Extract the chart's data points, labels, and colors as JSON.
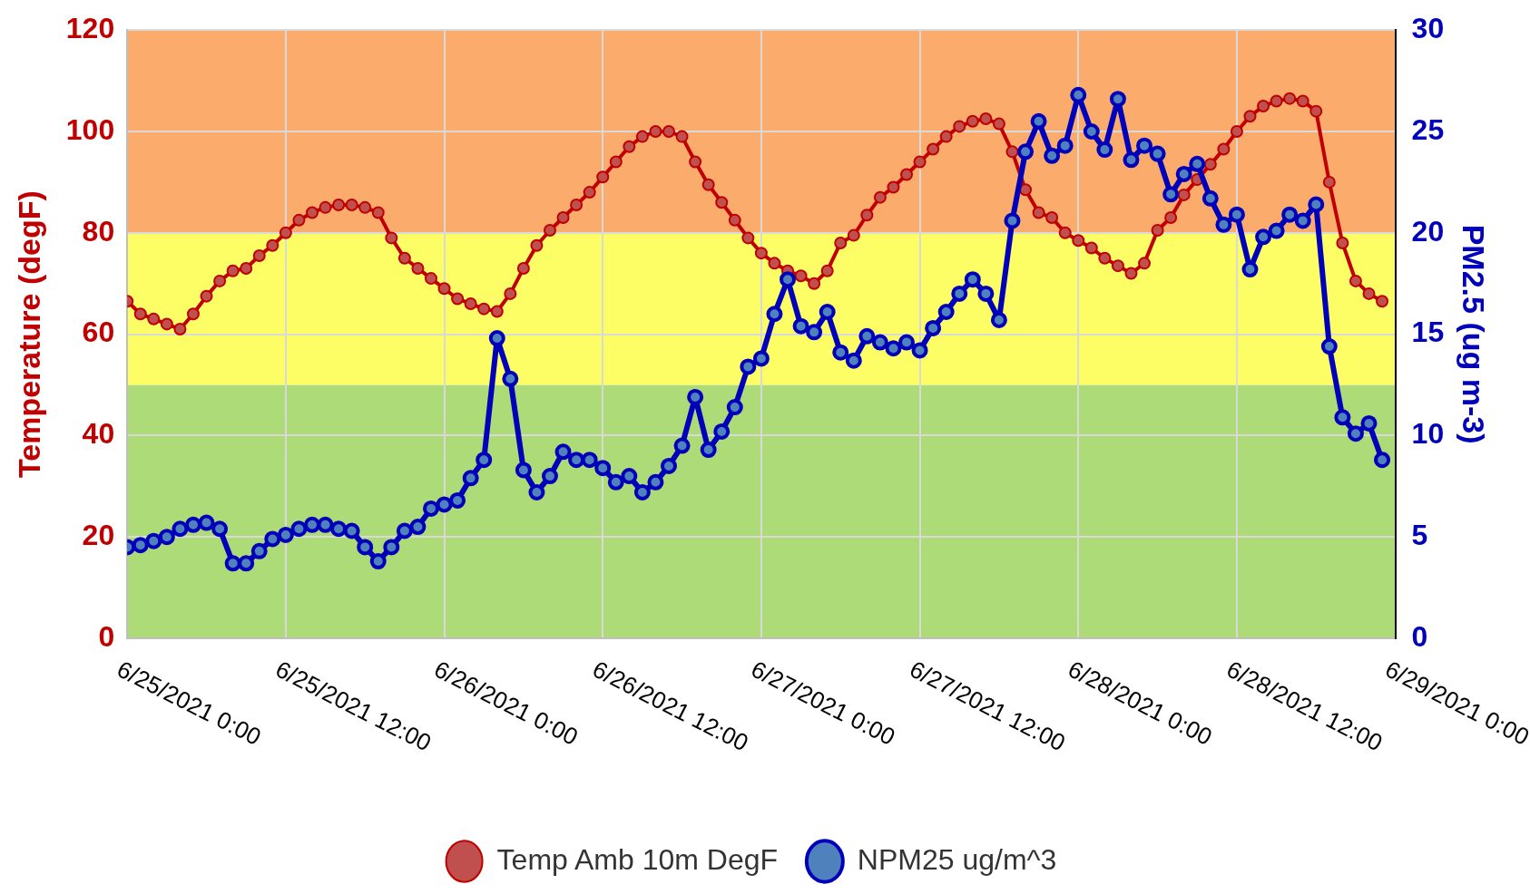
{
  "chart_data": {
    "type": "line",
    "ylabel": "Temperature (degF)",
    "y2label": "PM2.5 (ug m-3)",
    "x": [
      "2021-06-25T00:00",
      "2021-06-25T01:00",
      "2021-06-25T02:00",
      "2021-06-25T03:00",
      "2021-06-25T04:00",
      "2021-06-25T05:00",
      "2021-06-25T06:00",
      "2021-06-25T07:00",
      "2021-06-25T08:00",
      "2021-06-25T09:00",
      "2021-06-25T10:00",
      "2021-06-25T11:00",
      "2021-06-25T12:00",
      "2021-06-25T13:00",
      "2021-06-25T14:00",
      "2021-06-25T15:00",
      "2021-06-25T16:00",
      "2021-06-25T17:00",
      "2021-06-25T18:00",
      "2021-06-25T19:00",
      "2021-06-25T20:00",
      "2021-06-25T21:00",
      "2021-06-25T22:00",
      "2021-06-25T23:00",
      "2021-06-26T00:00",
      "2021-06-26T01:00",
      "2021-06-26T02:00",
      "2021-06-26T03:00",
      "2021-06-26T04:00",
      "2021-06-26T05:00",
      "2021-06-26T06:00",
      "2021-06-26T07:00",
      "2021-06-26T08:00",
      "2021-06-26T09:00",
      "2021-06-26T10:00",
      "2021-06-26T11:00",
      "2021-06-26T12:00",
      "2021-06-26T13:00",
      "2021-06-26T14:00",
      "2021-06-26T15:00",
      "2021-06-26T16:00",
      "2021-06-26T17:00",
      "2021-06-26T18:00",
      "2021-06-26T19:00",
      "2021-06-26T20:00",
      "2021-06-26T21:00",
      "2021-06-26T22:00",
      "2021-06-26T23:00",
      "2021-06-27T00:00",
      "2021-06-27T01:00",
      "2021-06-27T02:00",
      "2021-06-27T03:00",
      "2021-06-27T04:00",
      "2021-06-27T05:00",
      "2021-06-27T06:00",
      "2021-06-27T07:00",
      "2021-06-27T08:00",
      "2021-06-27T09:00",
      "2021-06-27T10:00",
      "2021-06-27T11:00",
      "2021-06-27T12:00",
      "2021-06-27T13:00",
      "2021-06-27T14:00",
      "2021-06-27T15:00",
      "2021-06-27T16:00",
      "2021-06-27T17:00",
      "2021-06-27T18:00",
      "2021-06-27T19:00",
      "2021-06-27T20:00",
      "2021-06-27T21:00",
      "2021-06-27T22:00",
      "2021-06-27T23:00",
      "2021-06-28T00:00",
      "2021-06-28T01:00",
      "2021-06-28T02:00",
      "2021-06-28T03:00",
      "2021-06-28T04:00",
      "2021-06-28T05:00",
      "2021-06-28T06:00",
      "2021-06-28T07:00",
      "2021-06-28T08:00",
      "2021-06-28T09:00",
      "2021-06-28T10:00",
      "2021-06-28T11:00",
      "2021-06-28T12:00",
      "2021-06-28T13:00",
      "2021-06-28T14:00",
      "2021-06-28T15:00",
      "2021-06-28T16:00",
      "2021-06-28T17:00",
      "2021-06-28T18:00",
      "2021-06-28T19:00",
      "2021-06-28T20:00",
      "2021-06-28T21:00",
      "2021-06-28T22:00",
      "2021-06-28T23:00"
    ],
    "series": [
      {
        "name": "Temp Amb 10m DegF",
        "color": "#c00000",
        "values": [
          66.5,
          64,
          63,
          62,
          61,
          64,
          67.5,
          70.5,
          72.5,
          73,
          75.5,
          77.5,
          80,
          82.5,
          84,
          85,
          85.5,
          85.5,
          85,
          84,
          79,
          75,
          73,
          71,
          69,
          67,
          66,
          65,
          64.5,
          68,
          73,
          77.5,
          80.5,
          83,
          85.5,
          88,
          91,
          94,
          97,
          99,
          100,
          100,
          99,
          94,
          89.5,
          86,
          82.5,
          79,
          76,
          74,
          72.5,
          71.5,
          70,
          72.5,
          78,
          79.5,
          83.5,
          87,
          89,
          91.5,
          94,
          96.5,
          99,
          101,
          102,
          102.5,
          101.5,
          96,
          88.5,
          84,
          83,
          80,
          78.5,
          77,
          75,
          73.5,
          72,
          74,
          80.5,
          83,
          87.5,
          90.5,
          93.5,
          96.5,
          100,
          103,
          105,
          106,
          106.5,
          106,
          104,
          90,
          78,
          70.5,
          68,
          66.5
        ]
      },
      {
        "name": "NPM25 ug/m^3",
        "color": "#0000bb",
        "axis": "y2",
        "values": [
          4.5,
          4.6,
          4.8,
          5.0,
          5.4,
          5.6,
          5.7,
          5.4,
          3.7,
          3.7,
          4.3,
          4.9,
          5.1,
          5.4,
          5.6,
          5.6,
          5.4,
          5.3,
          4.5,
          3.8,
          4.5,
          5.3,
          5.5,
          6.4,
          6.6,
          6.8,
          7.9,
          8.8,
          14.8,
          12.8,
          8.3,
          7.2,
          8.0,
          9.2,
          8.8,
          8.8,
          8.4,
          7.7,
          8.0,
          7.2,
          7.7,
          8.5,
          9.5,
          11.9,
          9.3,
          10.2,
          11.4,
          13.4,
          13.8,
          16.0,
          17.7,
          15.4,
          15.1,
          16.1,
          14.1,
          13.7,
          14.9,
          14.6,
          14.3,
          14.6,
          14.2,
          15.3,
          16.1,
          17.0,
          17.7,
          17.0,
          15.7,
          20.6,
          24.0,
          25.5,
          23.8,
          24.3,
          26.8,
          25.0,
          24.1,
          26.6,
          23.6,
          24.3,
          23.9,
          21.9,
          22.9,
          23.4,
          21.7,
          20.4,
          20.9,
          18.2,
          19.8,
          20.1,
          20.9,
          20.6,
          21.4,
          14.4,
          10.9,
          10.1,
          10.6,
          8.8
        ]
      }
    ],
    "xlim": [
      "2021-06-25T00:00",
      "2021-06-29T00:00"
    ],
    "xticks": [
      {
        "value": "2021-06-25T00:00",
        "label": "6/25/2021 0:00"
      },
      {
        "value": "2021-06-25T12:00",
        "label": "6/25/2021 12:00"
      },
      {
        "value": "2021-06-26T00:00",
        "label": "6/26/2021 0:00"
      },
      {
        "value": "2021-06-26T12:00",
        "label": "6/26/2021 12:00"
      },
      {
        "value": "2021-06-27T00:00",
        "label": "6/27/2021 0:00"
      },
      {
        "value": "2021-06-27T12:00",
        "label": "6/27/2021 12:00"
      },
      {
        "value": "2021-06-28T00:00",
        "label": "6/28/2021 0:00"
      },
      {
        "value": "2021-06-28T12:00",
        "label": "6/28/2021 12:00"
      },
      {
        "value": "2021-06-29T00:00",
        "label": "6/29/2021 0:00"
      }
    ],
    "ylim": [
      0,
      120
    ],
    "yticks": [
      0,
      20,
      40,
      60,
      80,
      100,
      120
    ],
    "y2lim": [
      0,
      30
    ],
    "y2ticks": [
      0,
      5,
      10,
      15,
      20,
      25,
      30
    ],
    "bands": [
      {
        "axis": "y",
        "from": 0,
        "to": 50,
        "color": "#acdb78"
      },
      {
        "axis": "y",
        "from": 50,
        "to": 80,
        "color": "#fdfd66"
      },
      {
        "axis": "y",
        "from": 80,
        "to": 120,
        "color": "#fbac6c"
      }
    ],
    "grid": true,
    "legend": "bottom",
    "marker": "circle",
    "line_style": "solid"
  }
}
